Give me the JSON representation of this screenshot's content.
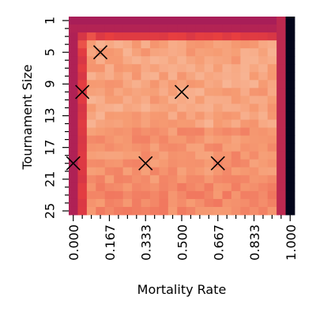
{
  "chart_data": {
    "type": "heatmap",
    "title": "",
    "xlabel": "Mortality Rate",
    "ylabel": "Tournament Size",
    "x_values": [
      0.0,
      0.04167,
      0.08333,
      0.125,
      0.16667,
      0.20833,
      0.25,
      0.29167,
      0.33333,
      0.375,
      0.41667,
      0.45833,
      0.5,
      0.54167,
      0.58333,
      0.625,
      0.66667,
      0.70833,
      0.75,
      0.79167,
      0.83333,
      0.875,
      0.91667,
      0.95833,
      1.0
    ],
    "y_values": [
      1,
      2,
      3,
      4,
      5,
      6,
      7,
      8,
      9,
      10,
      11,
      12,
      13,
      14,
      15,
      16,
      17,
      18,
      19,
      20,
      21,
      22,
      23,
      24,
      25
    ],
    "x_tick_labels": [
      "0.000",
      "0.167",
      "0.333",
      "0.500",
      "0.667",
      "0.833",
      "1.000"
    ],
    "x_tick_values": [
      0.0,
      0.16667,
      0.33333,
      0.5,
      0.66667,
      0.83333,
      1.0
    ],
    "y_tick_labels": [
      "1",
      "5",
      "9",
      "13",
      "17",
      "21",
      "25"
    ],
    "y_tick_values": [
      1,
      5,
      9,
      13,
      17,
      21,
      25
    ],
    "markers": [
      {
        "x": 0.125,
        "y": 5
      },
      {
        "x": 0.04167,
        "y": 10
      },
      {
        "x": 0.5,
        "y": 10
      },
      {
        "x": 0.0,
        "y": 19
      },
      {
        "x": 0.33333,
        "y": 19
      },
      {
        "x": 0.66667,
        "y": 19
      }
    ],
    "marker_symbol": "x",
    "colormap": [
      "#03051a",
      "#4c1d4b",
      "#a11a5b",
      "#e83f3f",
      "#f69c73",
      "#faebdd"
    ],
    "value_range": [
      0,
      1
    ],
    "grid": false,
    "legend": "none"
  }
}
